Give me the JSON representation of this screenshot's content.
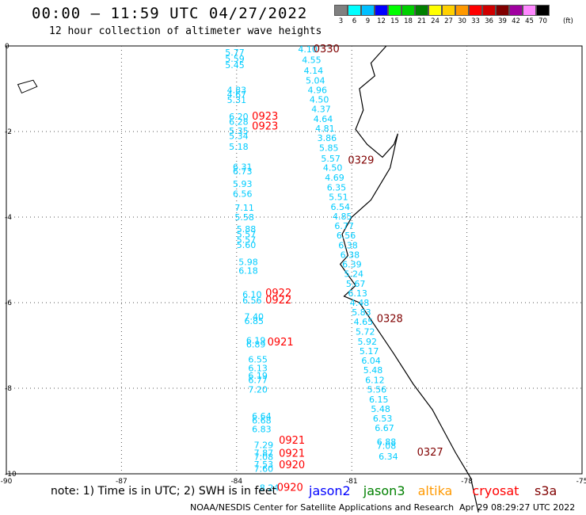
{
  "header": {
    "title": "00:00 – 11:59 UTC 04/27/2022",
    "subtitle": "12 hour collection of altimeter wave heights"
  },
  "colorbar": {
    "unit": "(ft)",
    "cells": [
      {
        "label": "3",
        "color": "#808080"
      },
      {
        "label": "6",
        "color": "#00ffff"
      },
      {
        "label": "9",
        "color": "#00bfff"
      },
      {
        "label": "12",
        "color": "#0000ff"
      },
      {
        "label": "15",
        "color": "#00ff00"
      },
      {
        "label": "18",
        "color": "#00d000"
      },
      {
        "label": "21",
        "color": "#008000"
      },
      {
        "label": "24",
        "color": "#ffff00"
      },
      {
        "label": "27",
        "color": "#ffd000"
      },
      {
        "label": "30",
        "color": "#ff9900"
      },
      {
        "label": "33",
        "color": "#ff0000"
      },
      {
        "label": "36",
        "color": "#d00000"
      },
      {
        "label": "39",
        "color": "#800000"
      },
      {
        "label": "42",
        "color": "#a000a0"
      },
      {
        "label": "45",
        "color": "#ff88ff"
      },
      {
        "label": "70",
        "color": "#000000"
      }
    ]
  },
  "map": {
    "lon_range": [
      -90,
      -75
    ],
    "lat_range": [
      -10,
      0
    ],
    "x_ticks": [
      "-90",
      "-87",
      "-84",
      "-81",
      "-78",
      "-75"
    ],
    "y_ticks": [
      "0",
      "-2",
      "-4",
      "-6",
      "-8",
      "-10"
    ],
    "colors": {
      "wave": "#00ccff",
      "time_red": "#ff0000",
      "time_dark": "#800000",
      "coast": "#000000"
    },
    "wave_readings": [
      {
        "lon": -84.3,
        "lat": -0.22,
        "v": "5.77"
      },
      {
        "lon": -84.3,
        "lat": -0.37,
        "v": "5.59"
      },
      {
        "lon": -84.3,
        "lat": -0.52,
        "v": "5.45"
      },
      {
        "lon": -84.25,
        "lat": -1.1,
        "v": "4.83"
      },
      {
        "lon": -84.25,
        "lat": -1.2,
        "v": "4.67"
      },
      {
        "lon": -84.25,
        "lat": -1.33,
        "v": "5.31"
      },
      {
        "lon": -84.2,
        "lat": -1.72,
        "v": "6.20"
      },
      {
        "lon": -84.2,
        "lat": -1.84,
        "v": "6.28"
      },
      {
        "lon": -84.2,
        "lat": -2.06,
        "v": "5.35"
      },
      {
        "lon": -84.2,
        "lat": -2.18,
        "v": "5.34"
      },
      {
        "lon": -84.2,
        "lat": -2.43,
        "v": "5.18"
      },
      {
        "lon": -84.1,
        "lat": -2.9,
        "v": "6.31"
      },
      {
        "lon": -84.1,
        "lat": -3.0,
        "v": "6.73"
      },
      {
        "lon": -84.1,
        "lat": -3.3,
        "v": "5.93"
      },
      {
        "lon": -84.1,
        "lat": -3.53,
        "v": "6.56"
      },
      {
        "lon": -84.05,
        "lat": -3.85,
        "v": "7.11"
      },
      {
        "lon": -84.05,
        "lat": -4.07,
        "v": "5.58"
      },
      {
        "lon": -84.0,
        "lat": -4.35,
        "v": "5.88"
      },
      {
        "lon": -84.0,
        "lat": -4.47,
        "v": "5.57"
      },
      {
        "lon": -84.0,
        "lat": -4.6,
        "v": "5.57"
      },
      {
        "lon": -84.0,
        "lat": -4.72,
        "v": "5.60"
      },
      {
        "lon": -83.95,
        "lat": -5.12,
        "v": "5.98"
      },
      {
        "lon": -83.95,
        "lat": -5.32,
        "v": "6.18"
      },
      {
        "lon": -83.85,
        "lat": -5.88,
        "v": "6.10"
      },
      {
        "lon": -83.85,
        "lat": -6.02,
        "v": "6.56"
      },
      {
        "lon": -83.8,
        "lat": -6.4,
        "v": "7.40"
      },
      {
        "lon": -83.8,
        "lat": -6.5,
        "v": "6.85"
      },
      {
        "lon": -83.75,
        "lat": -6.95,
        "v": "6.19"
      },
      {
        "lon": -83.75,
        "lat": -7.05,
        "v": "6.89"
      },
      {
        "lon": -83.7,
        "lat": -7.4,
        "v": "6.55"
      },
      {
        "lon": -83.7,
        "lat": -7.6,
        "v": "6.13"
      },
      {
        "lon": -83.7,
        "lat": -7.78,
        "v": "6.19"
      },
      {
        "lon": -83.7,
        "lat": -7.88,
        "v": "6.77"
      },
      {
        "lon": -83.7,
        "lat": -8.1,
        "v": "7.20"
      },
      {
        "lon": -83.6,
        "lat": -8.72,
        "v": "6.64"
      },
      {
        "lon": -83.6,
        "lat": -8.82,
        "v": "6.68"
      },
      {
        "lon": -83.6,
        "lat": -9.03,
        "v": "6.83"
      },
      {
        "lon": -83.55,
        "lat": -9.4,
        "v": "7.29"
      },
      {
        "lon": -83.55,
        "lat": -9.58,
        "v": "7.87"
      },
      {
        "lon": -83.55,
        "lat": -9.68,
        "v": "7.08"
      },
      {
        "lon": -83.55,
        "lat": -9.85,
        "v": "7.53"
      },
      {
        "lon": -83.55,
        "lat": -9.95,
        "v": "7.60"
      },
      {
        "lon": -83.4,
        "lat": -10.4,
        "v": "8.24"
      },
      {
        "lon": -82.4,
        "lat": -0.15,
        "v": "4.10"
      },
      {
        "lon": -82.3,
        "lat": -0.4,
        "v": "4.55"
      },
      {
        "lon": -82.25,
        "lat": -0.65,
        "v": "4.14"
      },
      {
        "lon": -82.2,
        "lat": -0.88,
        "v": "5.04"
      },
      {
        "lon": -82.15,
        "lat": -1.1,
        "v": "4.96"
      },
      {
        "lon": -82.1,
        "lat": -1.32,
        "v": "4.50"
      },
      {
        "lon": -82.05,
        "lat": -1.55,
        "v": "4.37"
      },
      {
        "lon": -82.0,
        "lat": -1.78,
        "v": "4.64"
      },
      {
        "lon": -81.95,
        "lat": -2.0,
        "v": "4.81"
      },
      {
        "lon": -81.9,
        "lat": -2.22,
        "v": "3.86"
      },
      {
        "lon": -81.85,
        "lat": -2.45,
        "v": "5.85"
      },
      {
        "lon": -81.8,
        "lat": -2.7,
        "v": "5.57"
      },
      {
        "lon": -81.75,
        "lat": -2.92,
        "v": "4.50"
      },
      {
        "lon": -81.7,
        "lat": -3.15,
        "v": "4.69"
      },
      {
        "lon": -81.65,
        "lat": -3.38,
        "v": "6.35"
      },
      {
        "lon": -81.6,
        "lat": -3.6,
        "v": "5.51"
      },
      {
        "lon": -81.55,
        "lat": -3.83,
        "v": "6.54"
      },
      {
        "lon": -81.5,
        "lat": -4.06,
        "v": "4.85"
      },
      {
        "lon": -81.45,
        "lat": -4.28,
        "v": "6.77"
      },
      {
        "lon": -81.4,
        "lat": -4.5,
        "v": "6.56"
      },
      {
        "lon": -81.35,
        "lat": -4.73,
        "v": "6.38"
      },
      {
        "lon": -81.3,
        "lat": -4.95,
        "v": "6.38"
      },
      {
        "lon": -81.25,
        "lat": -5.18,
        "v": "6.39"
      },
      {
        "lon": -81.2,
        "lat": -5.4,
        "v": "5.24"
      },
      {
        "lon": -81.15,
        "lat": -5.63,
        "v": "5.67"
      },
      {
        "lon": -81.1,
        "lat": -5.85,
        "v": "6.13"
      },
      {
        "lon": -81.05,
        "lat": -6.07,
        "v": "4.48"
      },
      {
        "lon": -81.0,
        "lat": -6.3,
        "v": "5.83"
      },
      {
        "lon": -80.95,
        "lat": -6.52,
        "v": "4.65"
      },
      {
        "lon": -80.9,
        "lat": -6.75,
        "v": "5.72"
      },
      {
        "lon": -80.85,
        "lat": -6.98,
        "v": "5.92"
      },
      {
        "lon": -80.8,
        "lat": -7.2,
        "v": "5.17"
      },
      {
        "lon": -80.75,
        "lat": -7.43,
        "v": "6.04"
      },
      {
        "lon": -80.7,
        "lat": -7.65,
        "v": "5.48"
      },
      {
        "lon": -80.65,
        "lat": -7.88,
        "v": "6.12"
      },
      {
        "lon": -80.6,
        "lat": -8.1,
        "v": "5.56"
      },
      {
        "lon": -80.55,
        "lat": -8.33,
        "v": "6.15"
      },
      {
        "lon": -80.5,
        "lat": -8.56,
        "v": "5.48"
      },
      {
        "lon": -80.45,
        "lat": -8.78,
        "v": "6.53"
      },
      {
        "lon": -80.4,
        "lat": -9.0,
        "v": "6.67"
      },
      {
        "lon": -80.35,
        "lat": -9.32,
        "v": "6.88"
      },
      {
        "lon": -80.35,
        "lat": -9.42,
        "v": "7.08"
      },
      {
        "lon": -80.3,
        "lat": -9.67,
        "v": "6.34"
      }
    ],
    "time_labels": [
      {
        "lon": -82.0,
        "lat": -0.15,
        "t": "0330",
        "c": "dark"
      },
      {
        "lon": -83.6,
        "lat": -1.72,
        "t": "0923",
        "c": "red"
      },
      {
        "lon": -83.6,
        "lat": -1.95,
        "t": "0923",
        "c": "red"
      },
      {
        "lon": -81.1,
        "lat": -2.75,
        "t": "0329",
        "c": "dark"
      },
      {
        "lon": -83.25,
        "lat": -5.85,
        "t": "0922",
        "c": "red"
      },
      {
        "lon": -83.25,
        "lat": -6.02,
        "t": "0922",
        "c": "red"
      },
      {
        "lon": -80.35,
        "lat": -6.45,
        "t": "0328",
        "c": "dark"
      },
      {
        "lon": -83.2,
        "lat": -7.0,
        "t": "0921",
        "c": "red"
      },
      {
        "lon": -82.9,
        "lat": -9.3,
        "t": "0921",
        "c": "red"
      },
      {
        "lon": -82.9,
        "lat": -9.6,
        "t": "0921",
        "c": "red"
      },
      {
        "lon": -82.9,
        "lat": -9.87,
        "t": "0920",
        "c": "red"
      },
      {
        "lon": -82.95,
        "lat": -10.4,
        "t": "0920",
        "c": "red"
      },
      {
        "lon": -79.3,
        "lat": -9.57,
        "t": "0327",
        "c": "dark"
      }
    ],
    "coast": [
      [
        -80.1,
        -0.0
      ],
      [
        -80.5,
        -0.4
      ],
      [
        -80.4,
        -0.7
      ],
      [
        -80.8,
        -1.0
      ],
      [
        -80.7,
        -1.5
      ],
      [
        -80.9,
        -1.95
      ],
      [
        -80.6,
        -2.3
      ],
      [
        -80.2,
        -2.6
      ],
      [
        -79.9,
        -2.3
      ],
      [
        -79.8,
        -2.05
      ],
      [
        -80.0,
        -2.85
      ],
      [
        -80.3,
        -3.3
      ],
      [
        -80.5,
        -3.6
      ],
      [
        -81.0,
        -4.0
      ],
      [
        -81.25,
        -4.4
      ],
      [
        -81.1,
        -4.9
      ],
      [
        -81.3,
        -5.1
      ],
      [
        -80.9,
        -5.6
      ],
      [
        -81.2,
        -5.85
      ],
      [
        -80.8,
        -6.0
      ],
      [
        -80.2,
        -6.8
      ],
      [
        -79.9,
        -7.2
      ],
      [
        -79.4,
        -7.9
      ],
      [
        -78.9,
        -8.5
      ],
      [
        -78.6,
        -9.0
      ],
      [
        -78.3,
        -9.5
      ],
      [
        -77.9,
        -10.1
      ],
      [
        -77.7,
        -10.9
      ]
    ],
    "island": [
      [
        -89.7,
        -0.9
      ],
      [
        -89.3,
        -0.8
      ],
      [
        -89.2,
        -0.95
      ],
      [
        -89.6,
        -1.1
      ]
    ]
  },
  "footer": {
    "note": "note: 1) Time is in UTC; 2) SWH is in feet",
    "credit": "NOAA/NESDIS Center for Satellite Applications and Research",
    "date": "Apr 29 08:29:27 UTC 2022",
    "legend": [
      {
        "name": "jason2",
        "color": "#0000ff"
      },
      {
        "name": "jason3",
        "color": "#008000"
      },
      {
        "name": "altika",
        "color": "#ff9900"
      },
      {
        "name": "cryosat",
        "color": "#ff0000"
      },
      {
        "name": "s3a",
        "color": "#800000"
      }
    ]
  }
}
